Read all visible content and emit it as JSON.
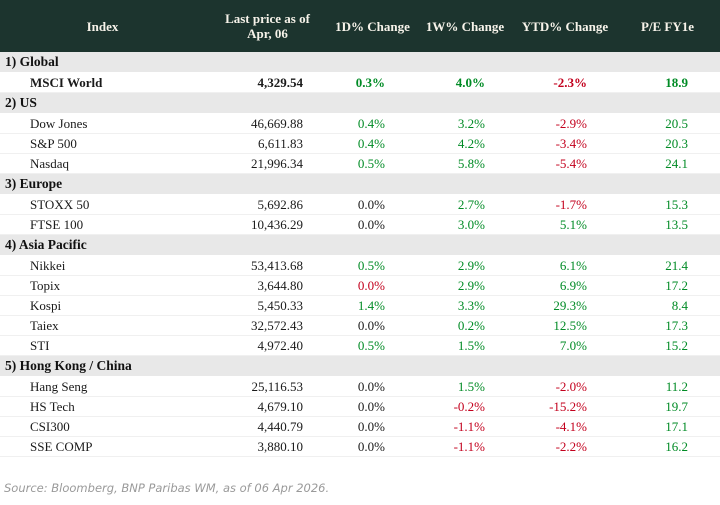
{
  "chart_data": {
    "type": "table",
    "columns": [
      "Index",
      "Last price as of\nApr, 06",
      "1D% Change",
      "1W% Change",
      "YTD% Change",
      "P/E FY1e"
    ],
    "sections": [
      {
        "label": "1) Global",
        "rows": [
          {
            "name": "MSCI World",
            "bold": true,
            "price": "4,329.54",
            "d1": {
              "v": "0.3%",
              "c": "up"
            },
            "w1": {
              "v": "4.0%",
              "c": "up"
            },
            "ytd": {
              "v": "-2.3%",
              "c": "down"
            },
            "pe": {
              "v": "18.9",
              "c": "up"
            }
          }
        ]
      },
      {
        "label": "2) US",
        "rows": [
          {
            "name": "Dow Jones",
            "price": "46,669.88",
            "d1": {
              "v": "0.4%",
              "c": "up"
            },
            "w1": {
              "v": "3.2%",
              "c": "up"
            },
            "ytd": {
              "v": "-2.9%",
              "c": "down"
            },
            "pe": {
              "v": "20.5",
              "c": "up"
            }
          },
          {
            "name": "S&P 500",
            "price": "6,611.83",
            "d1": {
              "v": "0.4%",
              "c": "up"
            },
            "w1": {
              "v": "4.2%",
              "c": "up"
            },
            "ytd": {
              "v": "-3.4%",
              "c": "down"
            },
            "pe": {
              "v": "20.3",
              "c": "up"
            }
          },
          {
            "name": "Nasdaq",
            "price": "21,996.34",
            "d1": {
              "v": "0.5%",
              "c": "up"
            },
            "w1": {
              "v": "5.8%",
              "c": "up"
            },
            "ytd": {
              "v": "-5.4%",
              "c": "down"
            },
            "pe": {
              "v": "24.1",
              "c": "up"
            }
          }
        ]
      },
      {
        "label": "3) Europe",
        "rows": [
          {
            "name": "STOXX 50",
            "price": "5,692.86",
            "d1": {
              "v": "0.0%",
              "c": "flat"
            },
            "w1": {
              "v": "2.7%",
              "c": "up"
            },
            "ytd": {
              "v": "-1.7%",
              "c": "down"
            },
            "pe": {
              "v": "15.3",
              "c": "up"
            }
          },
          {
            "name": "FTSE 100",
            "price": "10,436.29",
            "d1": {
              "v": "0.0%",
              "c": "flat"
            },
            "w1": {
              "v": "3.0%",
              "c": "up"
            },
            "ytd": {
              "v": "5.1%",
              "c": "up"
            },
            "pe": {
              "v": "13.5",
              "c": "up"
            }
          }
        ]
      },
      {
        "label": "4) Asia Pacific",
        "rows": [
          {
            "name": "Nikkei",
            "price": "53,413.68",
            "d1": {
              "v": "0.5%",
              "c": "up"
            },
            "w1": {
              "v": "2.9%",
              "c": "up"
            },
            "ytd": {
              "v": "6.1%",
              "c": "up"
            },
            "pe": {
              "v": "21.4",
              "c": "up"
            }
          },
          {
            "name": "Topix",
            "price": "3,644.80",
            "d1": {
              "v": "0.0%",
              "c": "down"
            },
            "w1": {
              "v": "2.9%",
              "c": "up"
            },
            "ytd": {
              "v": "6.9%",
              "c": "up"
            },
            "pe": {
              "v": "17.2",
              "c": "up"
            }
          },
          {
            "name": "Kospi",
            "price": "5,450.33",
            "d1": {
              "v": "1.4%",
              "c": "up"
            },
            "w1": {
              "v": "3.3%",
              "c": "up"
            },
            "ytd": {
              "v": "29.3%",
              "c": "up"
            },
            "pe": {
              "v": "8.4",
              "c": "up"
            }
          },
          {
            "name": "Taiex",
            "price": "32,572.43",
            "d1": {
              "v": "0.0%",
              "c": "flat"
            },
            "w1": {
              "v": "0.2%",
              "c": "up"
            },
            "ytd": {
              "v": "12.5%",
              "c": "up"
            },
            "pe": {
              "v": "17.3",
              "c": "up"
            }
          },
          {
            "name": "STI",
            "price": "4,972.40",
            "d1": {
              "v": "0.5%",
              "c": "up"
            },
            "w1": {
              "v": "1.5%",
              "c": "up"
            },
            "ytd": {
              "v": "7.0%",
              "c": "up"
            },
            "pe": {
              "v": "15.2",
              "c": "up"
            }
          }
        ]
      },
      {
        "label": "5) Hong Kong / China",
        "rows": [
          {
            "name": "Hang Seng",
            "price": "25,116.53",
            "d1": {
              "v": "0.0%",
              "c": "flat"
            },
            "w1": {
              "v": "1.5%",
              "c": "up"
            },
            "ytd": {
              "v": "-2.0%",
              "c": "down"
            },
            "pe": {
              "v": "11.2",
              "c": "up"
            }
          },
          {
            "name": "HS Tech",
            "price": "4,679.10",
            "d1": {
              "v": "0.0%",
              "c": "flat"
            },
            "w1": {
              "v": "-0.2%",
              "c": "down"
            },
            "ytd": {
              "v": "-15.2%",
              "c": "down"
            },
            "pe": {
              "v": "19.7",
              "c": "up"
            }
          },
          {
            "name": "CSI300",
            "price": "4,440.79",
            "d1": {
              "v": "0.0%",
              "c": "flat"
            },
            "w1": {
              "v": "-1.1%",
              "c": "down"
            },
            "ytd": {
              "v": "-4.1%",
              "c": "down"
            },
            "pe": {
              "v": "17.1",
              "c": "up"
            }
          },
          {
            "name": "SSE COMP",
            "price": "3,880.10",
            "d1": {
              "v": "0.0%",
              "c": "flat"
            },
            "w1": {
              "v": "-1.1%",
              "c": "down"
            },
            "ytd": {
              "v": "-2.2%",
              "c": "down"
            },
            "pe": {
              "v": "16.2",
              "c": "up"
            }
          }
        ]
      }
    ]
  },
  "source_note": "Source: Bloomberg, BNP Paribas WM, as of 06 Apr 2026.",
  "colors": {
    "up": "#008b25",
    "down": "#c3001d",
    "flat": "#1a1a1a",
    "header_bg": "#1c342e",
    "header_text": "#f7f3ea",
    "section_bg": "#e8e8e8"
  }
}
